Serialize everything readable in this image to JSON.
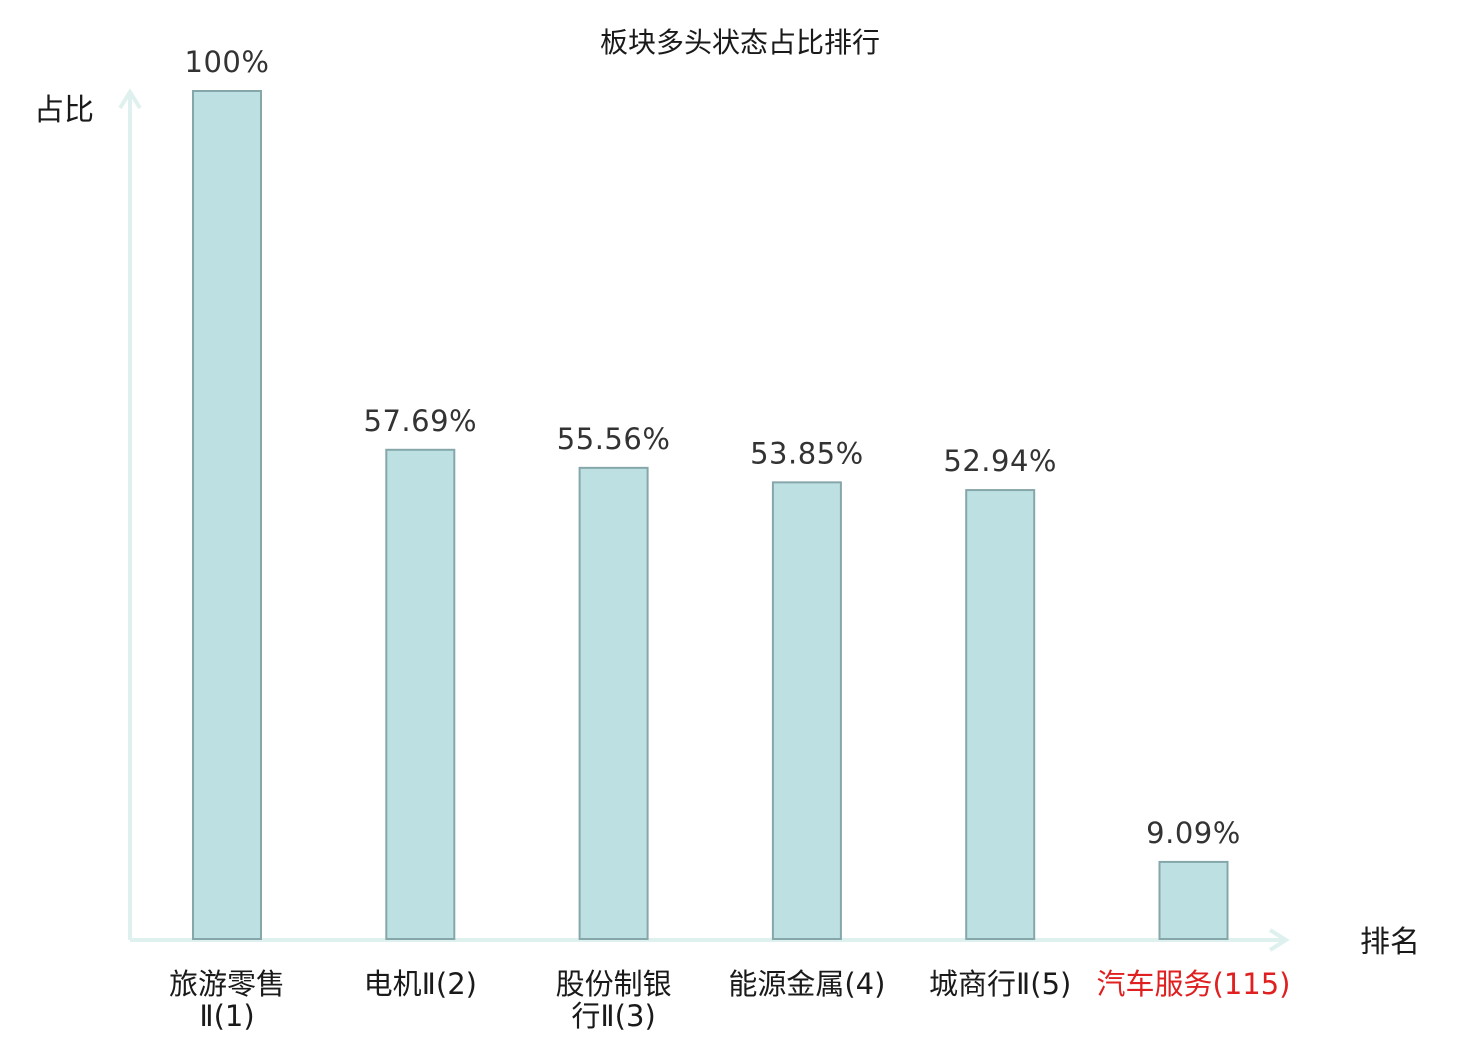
{
  "chart_data": {
    "type": "bar",
    "title": "板块多头状态占比排行",
    "ylabel": "占比",
    "xlabel": "排名",
    "ylim": [
      0,
      100
    ],
    "categories": [
      {
        "name": "旅游零售Ⅱ",
        "rank": "(1)",
        "lines": [
          "旅游零售",
          "Ⅱ(1)"
        ]
      },
      {
        "name": "电机Ⅱ",
        "rank": "(2)",
        "lines": [
          "电机Ⅱ(2)"
        ]
      },
      {
        "name": "股份制银行Ⅱ",
        "rank": "(3)",
        "lines": [
          "股份制银",
          "行Ⅱ(3)"
        ]
      },
      {
        "name": "能源金属",
        "rank": "(4)",
        "lines": [
          "能源金属(4)"
        ]
      },
      {
        "name": "城商行Ⅱ",
        "rank": "(5)",
        "lines": [
          "城商行Ⅱ(5)"
        ]
      },
      {
        "name": "汽车服务",
        "rank": "(115)",
        "lines": [
          "汽车服务(115)"
        ],
        "highlight": true
      }
    ],
    "values": [
      100,
      57.69,
      55.56,
      53.85,
      52.94,
      9.09
    ],
    "value_labels": [
      "100%",
      "57.69%",
      "55.56%",
      "53.85%",
      "52.94%",
      "9.09%"
    ],
    "grid": false,
    "legend": "none",
    "colors": {
      "bar_fill": "#bde0e3",
      "bar_stroke": "#86a7aa",
      "axis": "#dff1ee",
      "highlight": "#e02020"
    }
  }
}
